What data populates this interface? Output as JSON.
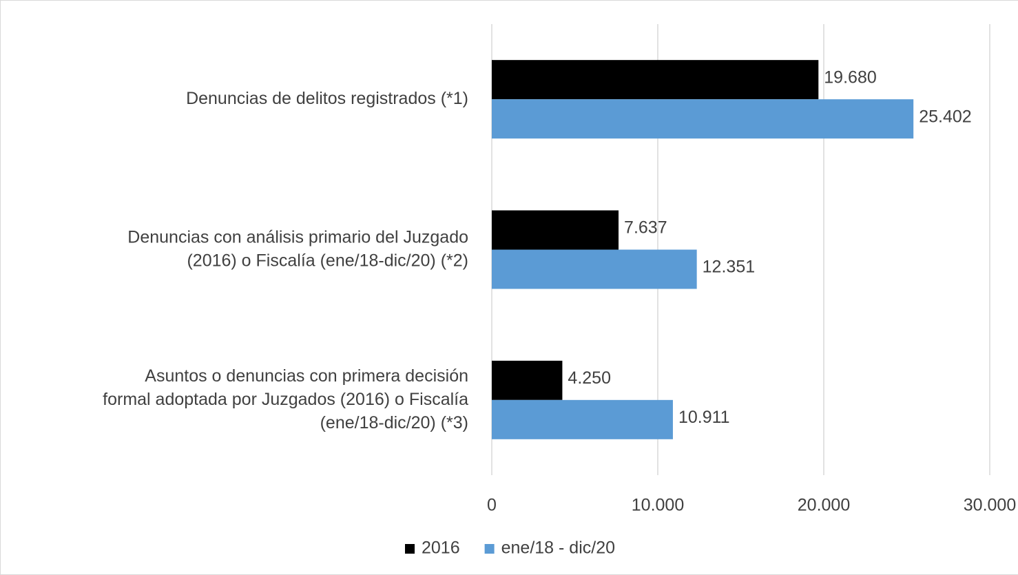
{
  "chart_data": {
    "type": "hbar",
    "categories": [
      "Denuncias de delitos registrados (*1)",
      "Denuncias con análisis primario del Juzgado\n(2016) o Fiscalía (ene/18-dic/20) (*2)",
      "Asuntos o denuncias con primera decisión\nformal adoptada por Juzgados (2016) o Fiscalía\n(ene/18-dic/20) (*3)"
    ],
    "series": [
      {
        "name": "2016",
        "color": "#000000",
        "values": [
          19680,
          7637,
          4250
        ],
        "value_labels": [
          "19.680",
          "7.637",
          "4.250"
        ]
      },
      {
        "name": "ene/18 - dic/20",
        "color": "#5b9bd5",
        "values": [
          25402,
          12351,
          10911
        ],
        "value_labels": [
          "25.402",
          "12.351",
          "10.911"
        ]
      }
    ],
    "xlim": [
      0,
      30000
    ],
    "xticks": [
      0,
      {
        "value": 10000,
        "label": "10.000"
      },
      {
        "value": 20000,
        "label": "20.000"
      },
      {
        "value": 30000,
        "label": "30.000"
      }
    ],
    "grid": true,
    "legend": "bottom"
  }
}
